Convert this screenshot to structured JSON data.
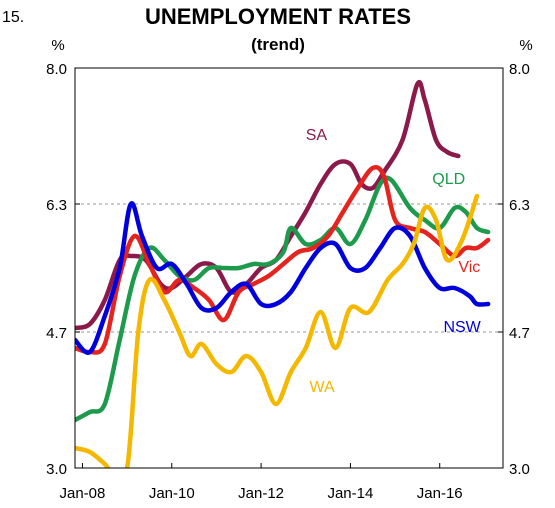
{
  "chart_data": {
    "type": "line",
    "figure_number": "15.",
    "title": "UNEMPLOYMENT RATES",
    "subtitle": "(trend)",
    "unit_left": "%",
    "unit_right": "%",
    "xlabel": "",
    "ylabel": "",
    "x_ticks": [
      "Jan-08",
      "Jan-10",
      "Jan-12",
      "Jan-14",
      "Jan-16"
    ],
    "y_ticks": [
      "3.0",
      "4.7",
      "6.3",
      "8.0"
    ],
    "ylim": [
      3.0,
      8.0
    ],
    "xlim": [
      "2007-11",
      "2017-06"
    ],
    "grid": "horizontal dashed at 4.7 and 6.3",
    "legend": "inline labels",
    "series": [
      {
        "name": "SA",
        "color": "#8b1a4a",
        "points": [
          [
            "2007-11",
            4.75
          ],
          [
            "2008-03",
            4.8
          ],
          [
            "2008-07",
            5.1
          ],
          [
            "2008-11",
            5.6
          ],
          [
            "2009-02",
            5.65
          ],
          [
            "2009-06",
            5.6
          ],
          [
            "2009-10",
            5.3
          ],
          [
            "2010-01",
            5.25
          ],
          [
            "2010-05",
            5.4
          ],
          [
            "2010-09",
            5.55
          ],
          [
            "2011-01",
            5.5
          ],
          [
            "2011-05",
            5.2
          ],
          [
            "2011-09",
            5.3
          ],
          [
            "2012-01",
            5.5
          ],
          [
            "2012-05",
            5.6
          ],
          [
            "2012-09",
            5.9
          ],
          [
            "2013-01",
            6.2
          ],
          [
            "2013-05",
            6.55
          ],
          [
            "2013-09",
            6.8
          ],
          [
            "2014-01",
            6.8
          ],
          [
            "2014-04",
            6.55
          ],
          [
            "2014-07",
            6.5
          ],
          [
            "2014-10",
            6.7
          ],
          [
            "2015-03",
            7.1
          ],
          [
            "2015-07",
            7.8
          ],
          [
            "2015-09",
            7.6
          ],
          [
            "2015-12",
            7.1
          ],
          [
            "2016-03",
            6.95
          ],
          [
            "2016-06",
            6.9
          ]
        ]
      },
      {
        "name": "QLD",
        "color": "#1e9a4c",
        "points": [
          [
            "2007-11",
            3.6
          ],
          [
            "2008-03",
            3.7
          ],
          [
            "2008-07",
            3.8
          ],
          [
            "2008-11",
            4.6
          ],
          [
            "2009-03",
            5.4
          ],
          [
            "2009-07",
            5.75
          ],
          [
            "2009-11",
            5.6
          ],
          [
            "2010-03",
            5.4
          ],
          [
            "2010-07",
            5.35
          ],
          [
            "2010-11",
            5.5
          ],
          [
            "2011-03",
            5.5
          ],
          [
            "2011-07",
            5.5
          ],
          [
            "2011-11",
            5.55
          ],
          [
            "2012-03",
            5.55
          ],
          [
            "2012-07",
            5.7
          ],
          [
            "2012-09",
            6.0
          ],
          [
            "2013-01",
            5.8
          ],
          [
            "2013-05",
            5.85
          ],
          [
            "2013-09",
            6.0
          ],
          [
            "2014-01",
            5.8
          ],
          [
            "2014-05",
            6.1
          ],
          [
            "2014-09",
            6.55
          ],
          [
            "2014-12",
            6.6
          ],
          [
            "2015-05",
            6.25
          ],
          [
            "2015-09",
            6.1
          ],
          [
            "2016-01",
            6.0
          ],
          [
            "2016-05",
            6.25
          ],
          [
            "2016-08",
            6.2
          ],
          [
            "2016-11",
            6.0
          ],
          [
            "2017-02",
            5.95
          ]
        ]
      },
      {
        "name": "Vic",
        "color": "#e5231f",
        "points": [
          [
            "2007-11",
            4.5
          ],
          [
            "2008-03",
            4.45
          ],
          [
            "2008-07",
            4.55
          ],
          [
            "2008-11",
            5.4
          ],
          [
            "2009-03",
            5.9
          ],
          [
            "2009-07",
            5.55
          ],
          [
            "2009-11",
            5.2
          ],
          [
            "2010-03",
            5.35
          ],
          [
            "2010-07",
            5.25
          ],
          [
            "2010-11",
            5.1
          ],
          [
            "2011-03",
            4.85
          ],
          [
            "2011-07",
            5.2
          ],
          [
            "2011-11",
            5.3
          ],
          [
            "2012-03",
            5.4
          ],
          [
            "2012-07",
            5.55
          ],
          [
            "2012-11",
            5.7
          ],
          [
            "2013-03",
            5.75
          ],
          [
            "2013-07",
            5.9
          ],
          [
            "2013-11",
            6.2
          ],
          [
            "2014-03",
            6.5
          ],
          [
            "2014-07",
            6.75
          ],
          [
            "2014-10",
            6.65
          ],
          [
            "2015-01",
            6.1
          ],
          [
            "2015-05",
            6.0
          ],
          [
            "2015-09",
            5.95
          ],
          [
            "2016-01",
            5.8
          ],
          [
            "2016-05",
            5.65
          ],
          [
            "2016-08",
            5.75
          ],
          [
            "2016-11",
            5.75
          ],
          [
            "2017-02",
            5.85
          ]
        ]
      },
      {
        "name": "NSW",
        "color": "#0000dd",
        "points": [
          [
            "2007-11",
            4.6
          ],
          [
            "2008-03",
            4.45
          ],
          [
            "2008-07",
            4.9
          ],
          [
            "2008-11",
            5.5
          ],
          [
            "2009-02",
            6.3
          ],
          [
            "2009-05",
            5.9
          ],
          [
            "2009-09",
            5.5
          ],
          [
            "2010-01",
            5.55
          ],
          [
            "2010-05",
            5.3
          ],
          [
            "2010-09",
            5.0
          ],
          [
            "2011-01",
            5.0
          ],
          [
            "2011-05",
            5.2
          ],
          [
            "2011-09",
            5.3
          ],
          [
            "2012-01",
            5.05
          ],
          [
            "2012-05",
            5.05
          ],
          [
            "2012-09",
            5.2
          ],
          [
            "2013-01",
            5.5
          ],
          [
            "2013-05",
            5.75
          ],
          [
            "2013-09",
            5.8
          ],
          [
            "2014-01",
            5.5
          ],
          [
            "2014-05",
            5.5
          ],
          [
            "2014-09",
            5.75
          ],
          [
            "2015-01",
            6.0
          ],
          [
            "2015-05",
            5.9
          ],
          [
            "2015-09",
            5.5
          ],
          [
            "2016-01",
            5.25
          ],
          [
            "2016-05",
            5.25
          ],
          [
            "2016-09",
            5.15
          ],
          [
            "2016-11",
            5.05
          ],
          [
            "2017-02",
            5.05
          ]
        ]
      },
      {
        "name": "WA",
        "color": "#f5b800",
        "points": [
          [
            "2007-11",
            3.25
          ],
          [
            "2008-03",
            3.2
          ],
          [
            "2008-07",
            3.05
          ],
          [
            "2008-09",
            2.95
          ],
          [
            "2009-01",
            3.0
          ],
          [
            "2009-04",
            4.7
          ],
          [
            "2009-07",
            5.35
          ],
          [
            "2009-11",
            5.1
          ],
          [
            "2010-03",
            4.7
          ],
          [
            "2010-06",
            4.4
          ],
          [
            "2010-09",
            4.55
          ],
          [
            "2011-01",
            4.3
          ],
          [
            "2011-05",
            4.2
          ],
          [
            "2011-09",
            4.4
          ],
          [
            "2012-01",
            4.2
          ],
          [
            "2012-05",
            3.8
          ],
          [
            "2012-09",
            4.2
          ],
          [
            "2013-01",
            4.5
          ],
          [
            "2013-05",
            4.95
          ],
          [
            "2013-09",
            4.5
          ],
          [
            "2014-01",
            5.0
          ],
          [
            "2014-06",
            4.95
          ],
          [
            "2014-11",
            5.35
          ],
          [
            "2015-03",
            5.55
          ],
          [
            "2015-06",
            5.8
          ],
          [
            "2015-09",
            6.25
          ],
          [
            "2015-12",
            6.1
          ],
          [
            "2016-03",
            5.6
          ],
          [
            "2016-07",
            5.85
          ],
          [
            "2016-11",
            6.4
          ]
        ]
      }
    ]
  }
}
